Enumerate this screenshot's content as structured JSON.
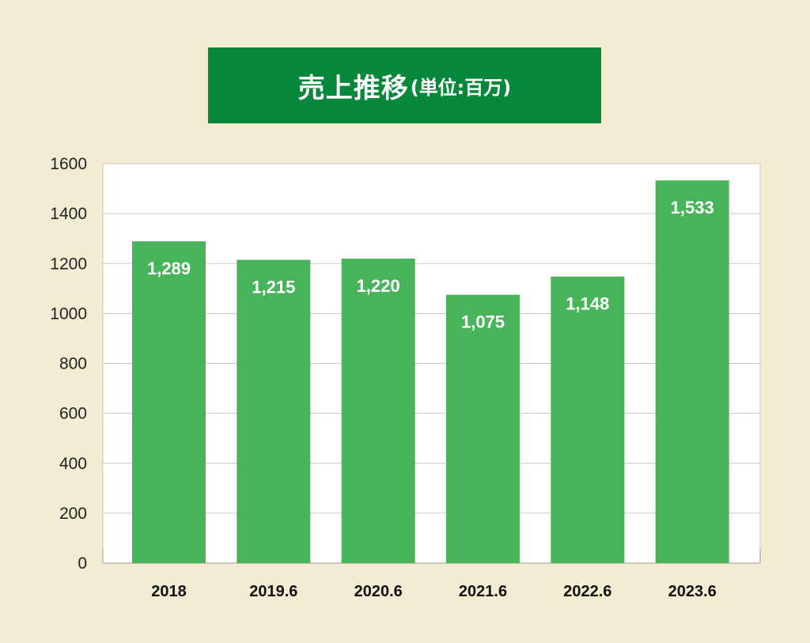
{
  "title": {
    "main": "売上推移",
    "unit": "(単位:百万)"
  },
  "colors": {
    "background": "#f1ecd2",
    "title_bg": "#06873a",
    "bar": "#48b45a",
    "plot_bg": "#ffffff",
    "grid": "#c8c8c8"
  },
  "chart_data": {
    "type": "bar",
    "categories": [
      "2018",
      "2019.6",
      "2020.6",
      "2021.6",
      "2022.6",
      "2023.6"
    ],
    "values": [
      1289,
      1215,
      1220,
      1075,
      1148,
      1533
    ],
    "data_labels": [
      "1,289",
      "1,215",
      "1,220",
      "1,075",
      "1,148",
      "1,533"
    ],
    "ylim": [
      0,
      1600
    ],
    "yticks": [
      0,
      200,
      400,
      600,
      800,
      1000,
      1200,
      1400,
      1600
    ],
    "grid": true,
    "legend": "none"
  }
}
